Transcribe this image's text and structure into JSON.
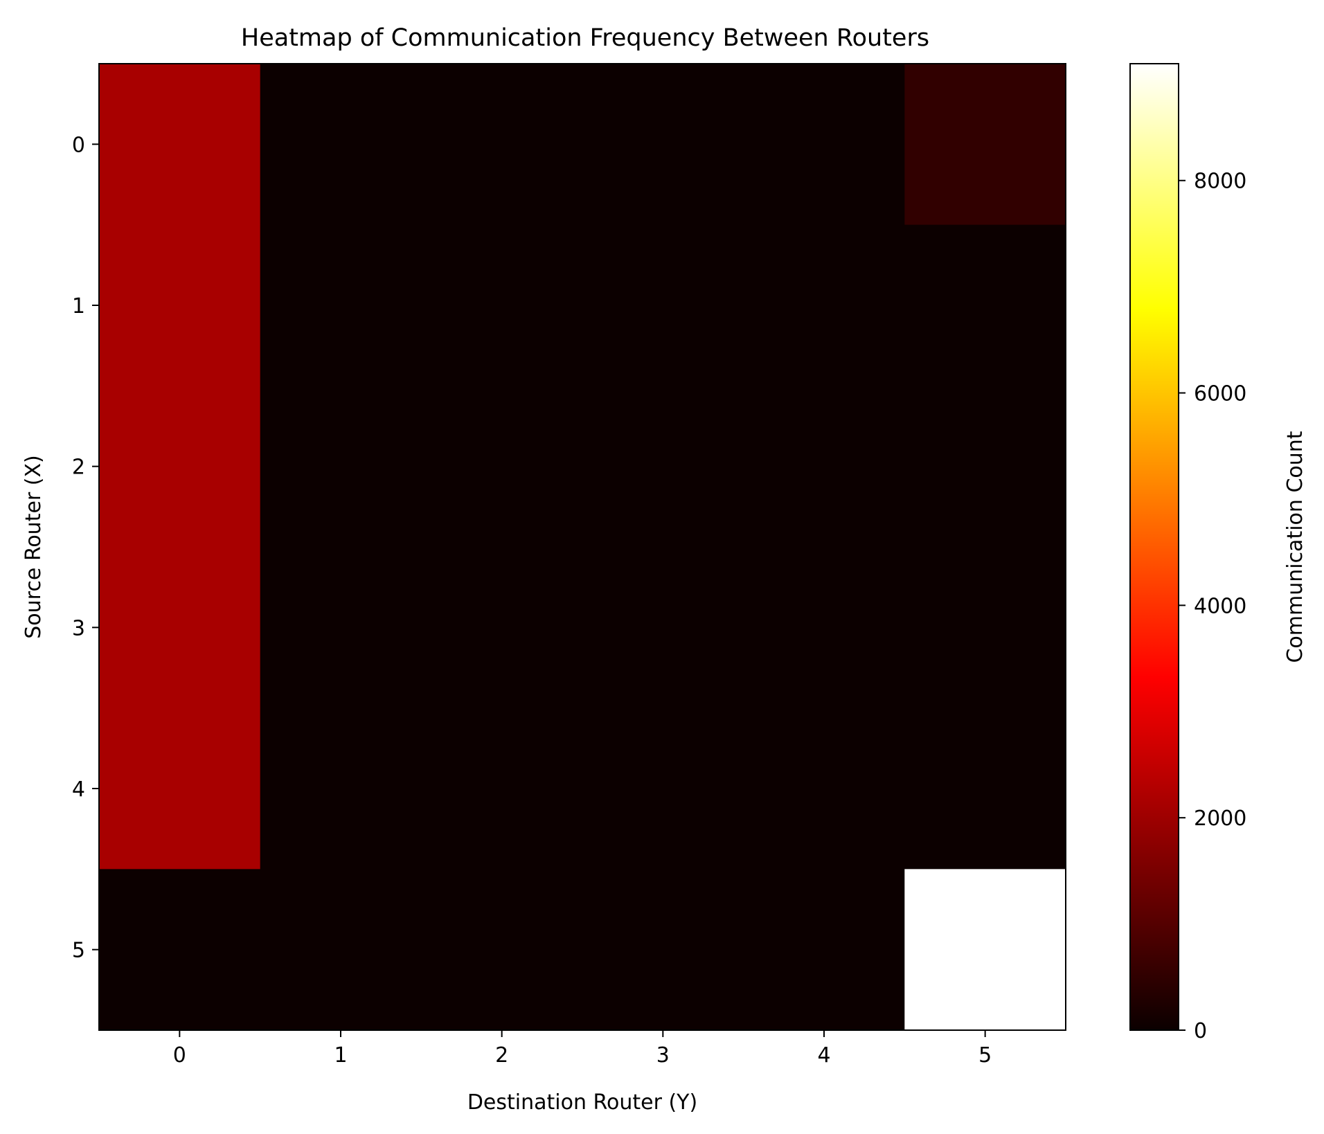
{
  "chart_data": {
    "type": "heatmap",
    "title": "Heatmap of Communication Frequency Between Routers",
    "xlabel": "Destination Router (Y)",
    "ylabel": "Source Router (X)",
    "x_categories": [
      "0",
      "1",
      "2",
      "3",
      "4",
      "5"
    ],
    "y_categories": [
      "0",
      "1",
      "2",
      "3",
      "4",
      "5"
    ],
    "values": [
      [
        2050,
        20,
        20,
        20,
        20,
        500
      ],
      [
        2050,
        20,
        20,
        20,
        20,
        20
      ],
      [
        2050,
        20,
        20,
        20,
        20,
        20
      ],
      [
        2050,
        20,
        20,
        20,
        20,
        20
      ],
      [
        2050,
        20,
        20,
        20,
        20,
        20
      ],
      [
        20,
        20,
        20,
        20,
        20,
        9100
      ]
    ],
    "colormap": "hot",
    "colorbar": {
      "label": "Communication Count",
      "range": [
        0,
        9100
      ],
      "ticks": [
        0,
        2000,
        4000,
        6000,
        8000
      ],
      "tick_labels": [
        "0",
        "2000",
        "4000",
        "6000",
        "8000"
      ]
    }
  }
}
